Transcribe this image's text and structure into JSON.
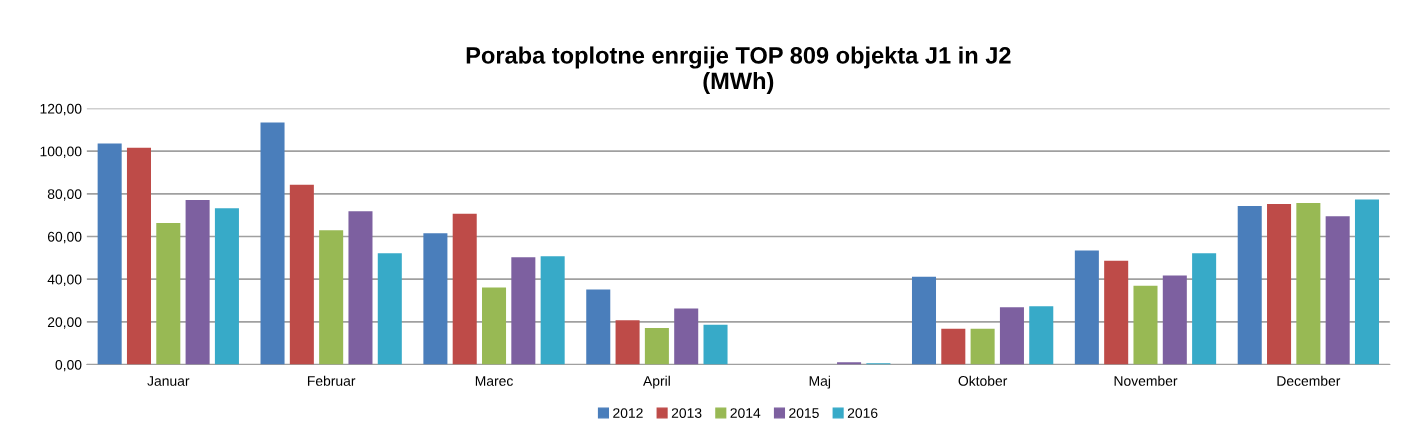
{
  "chart_data": {
    "type": "bar",
    "title": "Poraba toplotne enrgije TOP 809 objekta J1 in J2\n(MWh)",
    "categories": [
      "Januar",
      "Februar",
      "Marec",
      "April",
      "Maj",
      "Oktober",
      "November",
      "December"
    ],
    "series": [
      {
        "name": "2012",
        "color": "#4a7ebb",
        "values": [
          103.6,
          113.4,
          61.5,
          35.2,
          0,
          41.2,
          53.4,
          74.3
        ]
      },
      {
        "name": "2013",
        "color": "#be4b48",
        "values": [
          101.6,
          84.3,
          70.7,
          20.8,
          0,
          16.8,
          48.6,
          75.2
        ]
      },
      {
        "name": "2014",
        "color": "#98b954",
        "values": [
          66.3,
          62.9,
          36.1,
          17.1,
          0,
          16.8,
          36.9,
          75.7
        ]
      },
      {
        "name": "2015",
        "color": "#7d60a0",
        "values": [
          77.1,
          71.8,
          50.3,
          26.3,
          1.1,
          26.9,
          41.7,
          69.5
        ]
      },
      {
        "name": "2016",
        "color": "#37aac8",
        "values": [
          73.2,
          52.2,
          50.7,
          18.7,
          0.6,
          27.3,
          52.2,
          77.4
        ]
      }
    ],
    "ylim": [
      0,
      120
    ],
    "yticks": [
      {
        "value": 0,
        "label": "0,00"
      },
      {
        "value": 20,
        "label": "20,00"
      },
      {
        "value": 40,
        "label": "40,00"
      },
      {
        "value": 60,
        "label": "60,00"
      },
      {
        "value": 80,
        "label": "80,00"
      },
      {
        "value": 100,
        "label": "100,00"
      },
      {
        "value": 120,
        "label": "120,00"
      }
    ],
    "grid": "y",
    "legend": "bottom"
  }
}
